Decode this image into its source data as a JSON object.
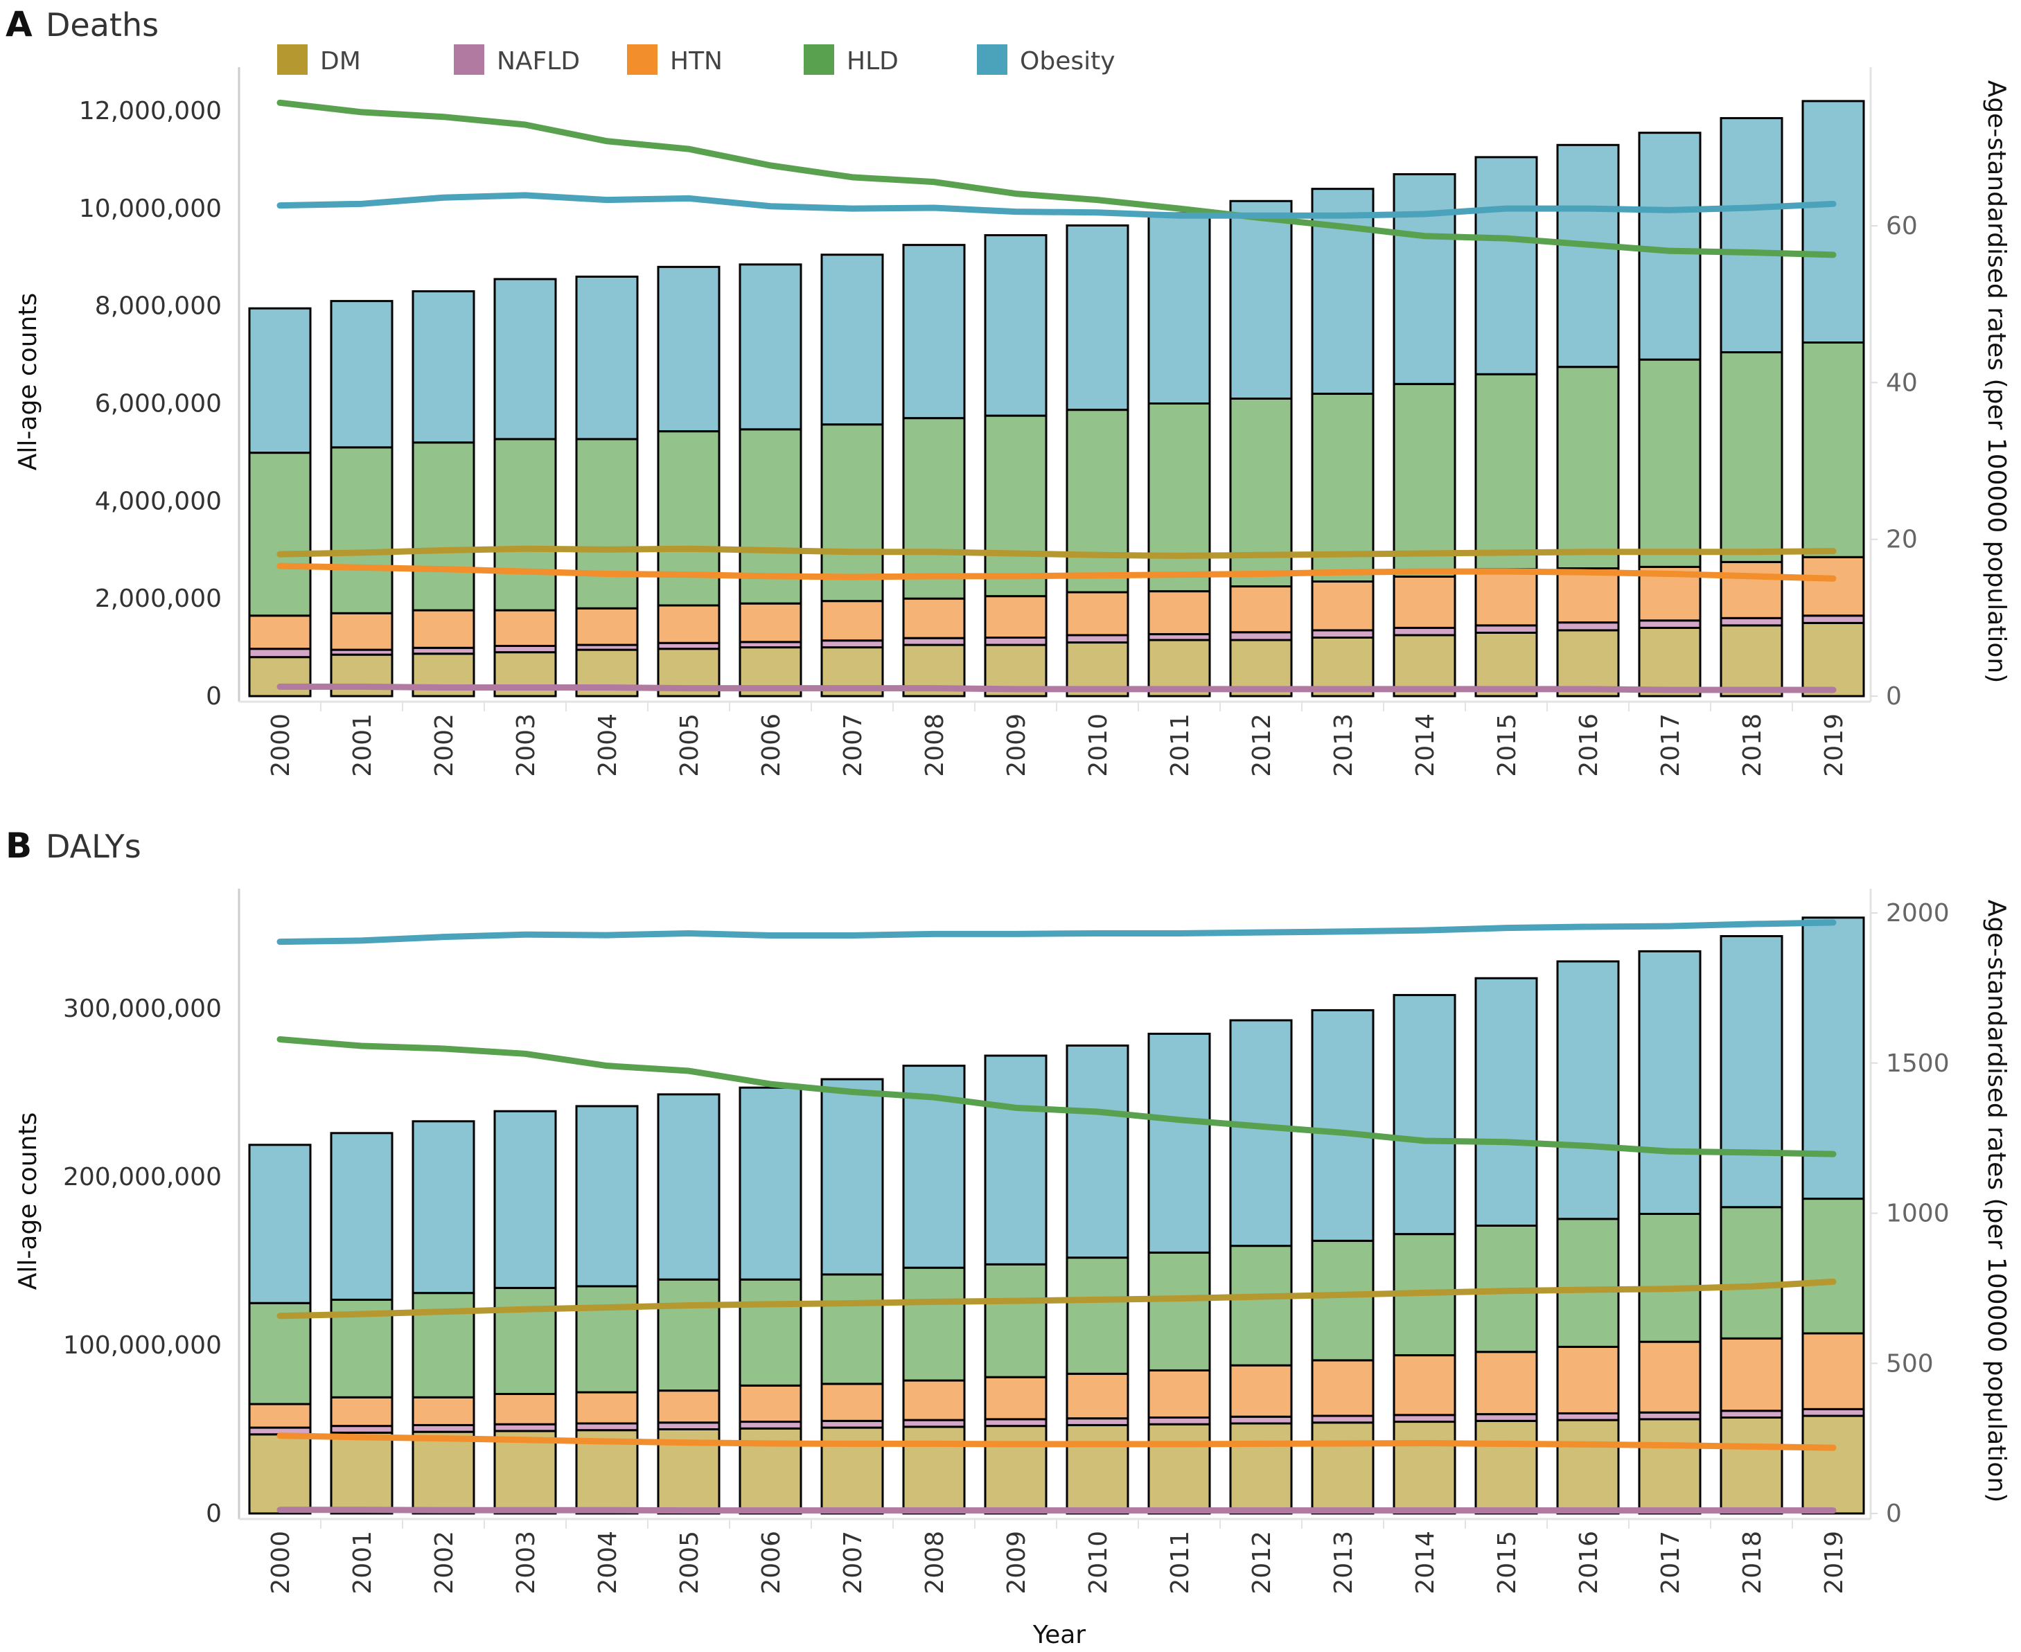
{
  "chart_data": [
    {
      "type": "bar",
      "panel_letter": "A",
      "title": "Deaths",
      "xlabel": "Year",
      "ylabel": "All-age counts",
      "ylabel_right": "Age-standardised rates (per 100000 population)",
      "ylim": [
        0,
        12500000
      ],
      "ylim_right": [
        0,
        78
      ],
      "yticks": [
        0,
        2000000,
        4000000,
        6000000,
        8000000,
        10000000,
        12000000
      ],
      "ytick_labels": [
        "0",
        "2,000,000",
        "4,000,000",
        "6,000,000",
        "8,000,000",
        "10,000,000",
        "12,000,000"
      ],
      "yticks_right": [
        0,
        20,
        40,
        60
      ],
      "ytick_labels_right": [
        "0",
        "20",
        "40",
        "60"
      ],
      "categories": [
        "2000",
        "2001",
        "2002",
        "2003",
        "2004",
        "2005",
        "2006",
        "2007",
        "2008",
        "2009",
        "2010",
        "2011",
        "2012",
        "2013",
        "2014",
        "2015",
        "2016",
        "2017",
        "2018",
        "2019"
      ],
      "bar_series": [
        {
          "name": "DM",
          "values": [
            800000,
            850000,
            870000,
            900000,
            950000,
            970000,
            1000000,
            1000000,
            1050000,
            1050000,
            1100000,
            1150000,
            1150000,
            1200000,
            1250000,
            1300000,
            1350000,
            1400000,
            1450000,
            1500000
          ]
        },
        {
          "name": "NAFLD",
          "values": [
            170000,
            100000,
            120000,
            130000,
            100000,
            120000,
            110000,
            140000,
            140000,
            150000,
            150000,
            120000,
            160000,
            150000,
            150000,
            150000,
            160000,
            150000,
            150000,
            150000
          ]
        },
        {
          "name": "HTN",
          "values": [
            680000,
            750000,
            770000,
            730000,
            750000,
            770000,
            790000,
            810000,
            810000,
            850000,
            880000,
            880000,
            940000,
            1000000,
            1050000,
            1150000,
            1110000,
            1100000,
            1150000,
            1200000
          ]
        },
        {
          "name": "HLD",
          "values": [
            3340000,
            3400000,
            3440000,
            3510000,
            3470000,
            3570000,
            3570000,
            3620000,
            3700000,
            3700000,
            3740000,
            3850000,
            3850000,
            3850000,
            3950000,
            4000000,
            4130000,
            4250000,
            4300000,
            4400000
          ]
        },
        {
          "name": "Obesity",
          "values": [
            2960000,
            3000000,
            3100000,
            3280000,
            3330000,
            3370000,
            3380000,
            3480000,
            3550000,
            3700000,
            3780000,
            3900000,
            4050000,
            4200000,
            4300000,
            4450000,
            4550000,
            4650000,
            4800000,
            4950000
          ]
        }
      ],
      "line_series": [
        {
          "name": "DM",
          "values": [
            18.1,
            18.3,
            18.6,
            18.8,
            18.7,
            18.8,
            18.6,
            18.4,
            18.4,
            18.2,
            18.0,
            17.9,
            18.0,
            18.1,
            18.2,
            18.3,
            18.4,
            18.4,
            18.4,
            18.5
          ]
        },
        {
          "name": "NAFLD",
          "values": [
            1.2,
            1.2,
            1.1,
            1.1,
            1.1,
            1.0,
            1.0,
            1.0,
            1.0,
            0.9,
            0.9,
            0.9,
            0.9,
            0.9,
            0.9,
            0.9,
            0.9,
            0.8,
            0.8,
            0.8
          ]
        },
        {
          "name": "HTN",
          "values": [
            16.6,
            16.4,
            16.2,
            15.9,
            15.6,
            15.5,
            15.3,
            15.2,
            15.3,
            15.3,
            15.4,
            15.5,
            15.6,
            15.8,
            15.9,
            15.9,
            15.8,
            15.6,
            15.3,
            15.0
          ]
        },
        {
          "name": "HLD",
          "values": [
            75.7,
            74.5,
            73.9,
            72.9,
            70.8,
            69.8,
            67.7,
            66.2,
            65.6,
            64.1,
            63.3,
            62.2,
            61.0,
            59.9,
            58.7,
            58.4,
            57.6,
            56.8,
            56.6,
            56.3
          ]
        },
        {
          "name": "Obesity",
          "values": [
            62.6,
            62.8,
            63.6,
            63.9,
            63.3,
            63.5,
            62.5,
            62.2,
            62.3,
            61.8,
            61.7,
            61.3,
            61.3,
            61.3,
            61.5,
            62.2,
            62.2,
            62.0,
            62.3,
            62.8
          ]
        }
      ]
    },
    {
      "type": "bar",
      "panel_letter": "B",
      "title": "DALYs",
      "xlabel": "Year",
      "ylabel": "All-age counts",
      "ylabel_right": "Age-standardised rates (per 100000 population)",
      "ylim": [
        0,
        365000000
      ],
      "ylim_right": [
        0,
        2080
      ],
      "yticks": [
        0,
        100000000,
        200000000,
        300000000
      ],
      "ytick_labels": [
        "0",
        "100,000,000",
        "200,000,000",
        "300,000,000"
      ],
      "yticks_right": [
        0,
        500,
        1000,
        1500,
        2000
      ],
      "ytick_labels_right": [
        "0",
        "500",
        "1000",
        "1500",
        "2000"
      ],
      "categories": [
        "2000",
        "2001",
        "2002",
        "2003",
        "2004",
        "2005",
        "2006",
        "2007",
        "2008",
        "2009",
        "2010",
        "2011",
        "2012",
        "2013",
        "2014",
        "2015",
        "2016",
        "2017",
        "2018",
        "2019"
      ],
      "bar_series": [
        {
          "name": "DM",
          "values": [
            47000000,
            48000000,
            48500000,
            49000000,
            49500000,
            50000000,
            50500000,
            51000000,
            51500000,
            52000000,
            52500000,
            53000000,
            53500000,
            54000000,
            54500000,
            55000000,
            55500000,
            56000000,
            57000000,
            58000000
          ]
        },
        {
          "name": "NAFLD",
          "values": [
            4000000,
            4000000,
            4000000,
            4000000,
            4000000,
            4000000,
            4000000,
            4000000,
            4000000,
            4000000,
            4000000,
            4000000,
            4000000,
            4000000,
            4000000,
            4000000,
            4000000,
            4000000,
            4000000,
            4000000
          ]
        },
        {
          "name": "HTN",
          "values": [
            14000000,
            17000000,
            16500000,
            18000000,
            18500000,
            19000000,
            21500000,
            22000000,
            23500000,
            25000000,
            26500000,
            28000000,
            30500000,
            33000000,
            35500000,
            37000000,
            39500000,
            42000000,
            43000000,
            45000000
          ]
        },
        {
          "name": "HLD",
          "values": [
            60000000,
            58000000,
            62000000,
            63000000,
            63000000,
            66000000,
            63000000,
            65000000,
            67000000,
            67000000,
            69000000,
            70000000,
            71000000,
            71000000,
            72000000,
            75000000,
            76000000,
            76000000,
            78000000,
            80000000
          ]
        },
        {
          "name": "Obesity",
          "values": [
            94000000,
            99000000,
            102000000,
            105000000,
            107000000,
            110000000,
            114000000,
            116000000,
            120000000,
            124000000,
            126000000,
            130000000,
            134000000,
            137000000,
            142000000,
            147000000,
            153000000,
            156000000,
            161000000,
            167000000
          ]
        }
      ],
      "line_series": [
        {
          "name": "DM",
          "values": [
            658,
            664,
            672,
            680,
            686,
            693,
            697,
            700,
            705,
            708,
            712,
            716,
            722,
            728,
            735,
            741,
            745,
            748,
            756,
            772
          ]
        },
        {
          "name": "NAFLD",
          "values": [
            12,
            12,
            11,
            11,
            11,
            10,
            10,
            10,
            10,
            10,
            10,
            10,
            10,
            10,
            10,
            10,
            10,
            10,
            10,
            10
          ]
        },
        {
          "name": "HTN",
          "values": [
            259,
            254,
            250,
            245,
            240,
            236,
            233,
            232,
            232,
            231,
            231,
            231,
            232,
            233,
            234,
            232,
            230,
            227,
            223,
            219
          ]
        },
        {
          "name": "HLD",
          "values": [
            1579,
            1557,
            1548,
            1531,
            1491,
            1474,
            1430,
            1404,
            1386,
            1351,
            1338,
            1311,
            1289,
            1268,
            1241,
            1237,
            1224,
            1206,
            1202,
            1197
          ]
        },
        {
          "name": "Obesity",
          "values": [
            1904,
            1908,
            1920,
            1928,
            1926,
            1932,
            1925,
            1925,
            1930,
            1930,
            1932,
            1932,
            1935,
            1938,
            1942,
            1950,
            1954,
            1956,
            1963,
            1968
          ]
        }
      ]
    }
  ],
  "legend": [
    {
      "name": "DM",
      "color": "#b5982f"
    },
    {
      "name": "NAFLD",
      "color": "#b07aa1"
    },
    {
      "name": "HTN",
      "color": "#f28e2b"
    },
    {
      "name": "HLD",
      "color": "#59a14f"
    },
    {
      "name": "Obesity",
      "color": "#4aa3ba"
    }
  ],
  "colors": {
    "bar": {
      "DM": "#cfbf77",
      "NAFLD": "#d4a6c8",
      "HTN": "#f5b475",
      "HLD": "#93c28a",
      "Obesity": "#8bc4d3"
    },
    "line": {
      "DM": "#b5982f",
      "NAFLD": "#b07aa1",
      "HTN": "#f28e2b",
      "HLD": "#59a14f",
      "Obesity": "#4aa3ba"
    }
  },
  "x_axis_title": "Year"
}
